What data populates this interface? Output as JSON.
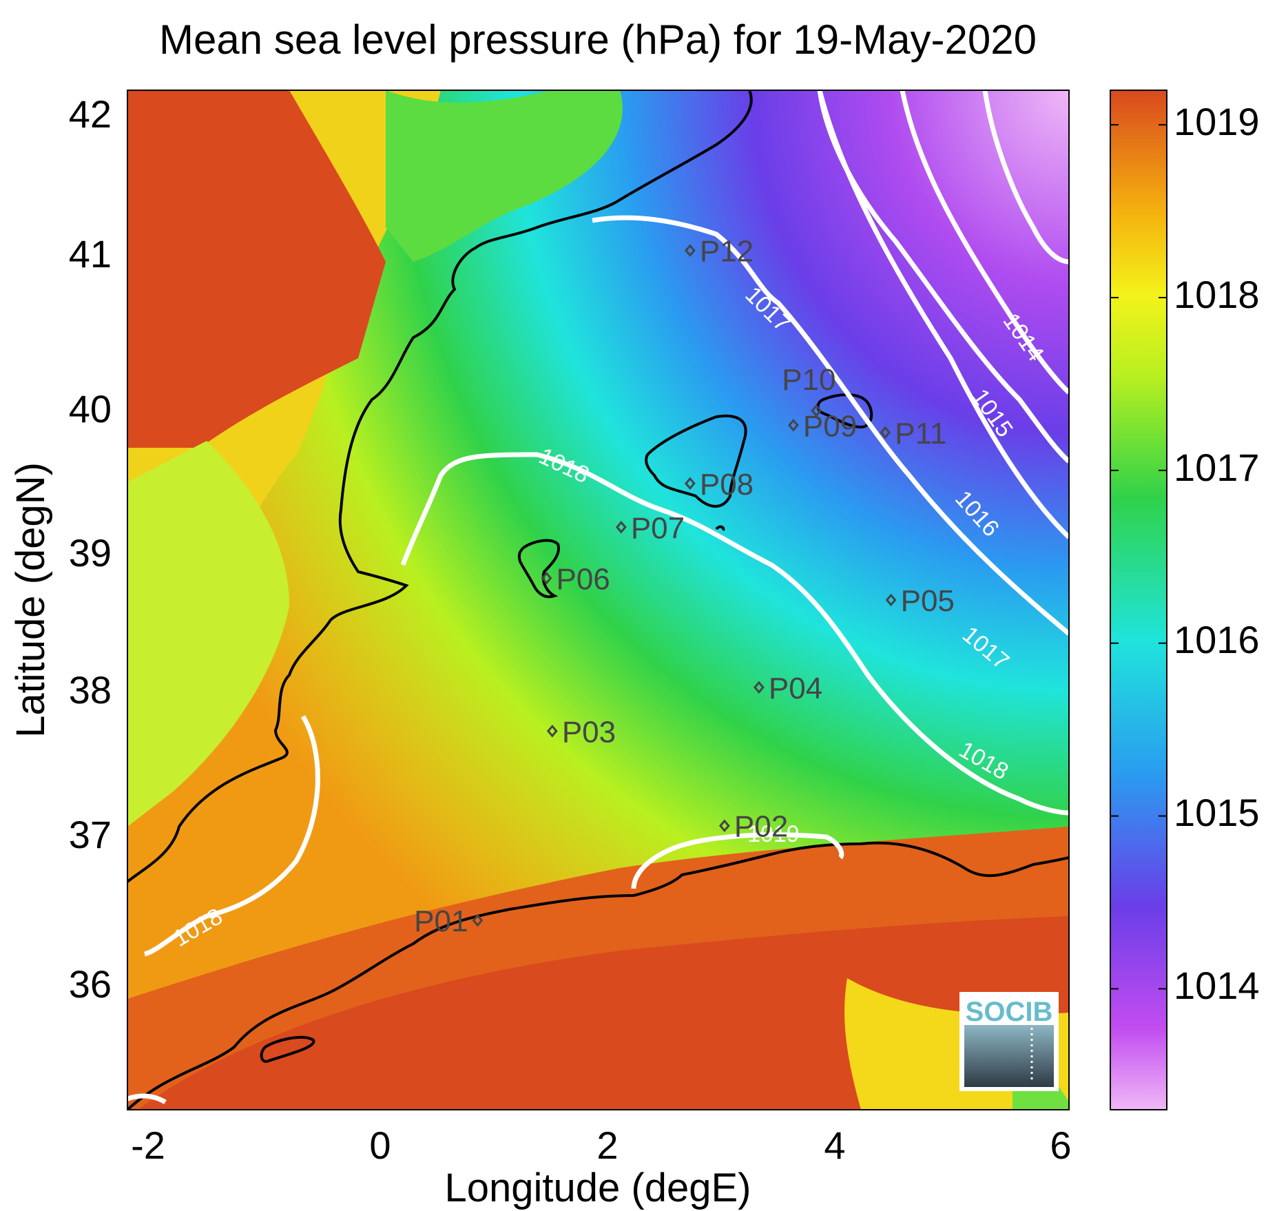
{
  "title": "Mean sea level pressure (hPa) for 19-May-2020",
  "xlabel": "Longitude (degE)",
  "ylabel": "Latitude (degN)",
  "x_ticks": [
    "-2",
    "0",
    "2",
    "4",
    "6"
  ],
  "y_ticks": [
    "42",
    "41",
    "40",
    "39",
    "38",
    "37",
    "36"
  ],
  "colorbar_ticks": [
    "1019",
    "1018",
    "1017",
    "1016",
    "1015",
    "1014"
  ],
  "logo_text": "SOCIB",
  "contour_labels": [
    "1014",
    "1015",
    "1016",
    "1017",
    "1017",
    "1018",
    "1018",
    "1018",
    "1019"
  ],
  "colors": {
    "contour": "#ffffff",
    "coast": "#000000",
    "station": "#454545",
    "high": "#d94a1e",
    "low": "#efb8f7"
  },
  "chart_data": {
    "type": "heatmap",
    "title": "Mean sea level pressure (hPa) for 19-May-2020",
    "xlabel": "Longitude (degE)",
    "ylabel": "Latitude (degN)",
    "xlim": [
      -2.2,
      6.0
    ],
    "ylim": [
      35.2,
      42.2
    ],
    "colorbar": {
      "range": [
        1013.3,
        1019.2
      ],
      "ticks": [
        1014,
        1015,
        1016,
        1017,
        1018,
        1019
      ]
    },
    "contour_levels": [
      1014,
      1015,
      1016,
      1017,
      1018,
      1019
    ],
    "stations": [
      {
        "name": "P01",
        "lon": 0.85,
        "lat": 36.5
      },
      {
        "name": "P02",
        "lon": 3.0,
        "lat": 37.15
      },
      {
        "name": "P03",
        "lon": 1.5,
        "lat": 37.8
      },
      {
        "name": "P04",
        "lon": 3.3,
        "lat": 38.1
      },
      {
        "name": "P05",
        "lon": 4.45,
        "lat": 38.7
      },
      {
        "name": "P06",
        "lon": 1.45,
        "lat": 38.85
      },
      {
        "name": "P07",
        "lon": 2.1,
        "lat": 39.2
      },
      {
        "name": "P08",
        "lon": 2.7,
        "lat": 39.5
      },
      {
        "name": "P09",
        "lon": 3.6,
        "lat": 39.9
      },
      {
        "name": "P10",
        "lon": 3.8,
        "lat": 40.0
      },
      {
        "name": "P11",
        "lon": 4.4,
        "lat": 39.85
      },
      {
        "name": "P12",
        "lon": 2.7,
        "lat": 41.1
      }
    ]
  }
}
